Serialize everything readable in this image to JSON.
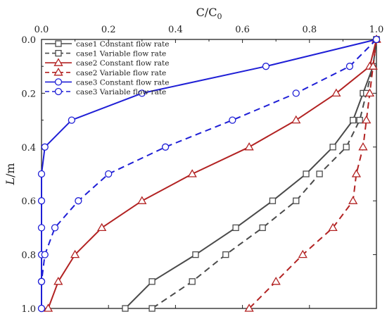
{
  "chart_data": {
    "type": "line",
    "xlabel": "C/C0",
    "ylabel": "L/m",
    "xlim": [
      0.0,
      1.0
    ],
    "ylim": [
      0.0,
      1.0
    ],
    "y_inverted": true,
    "x_axis_position": "top",
    "x_ticks": [
      0.0,
      0.2,
      0.4,
      0.6,
      0.8,
      1.0
    ],
    "x_tick_labels": [
      "0.0",
      "0.2",
      "0.4",
      "0.6",
      "0.8",
      "1.0"
    ],
    "y_ticks": [
      0.0,
      0.2,
      0.4,
      0.6,
      0.8,
      1.0
    ],
    "y_tick_labels": [
      "0.0",
      "0.2",
      "0.4",
      "0.6",
      "0.8",
      "1.0"
    ],
    "grid": false,
    "legend_position": "top-left",
    "series": [
      {
        "name": "case1 Constant flow rate",
        "color": "#4a4a4a",
        "dash": "solid",
        "marker": "square",
        "points": [
          [
            1.0,
            0.0
          ],
          [
            0.99,
            0.1
          ],
          [
            0.96,
            0.2
          ],
          [
            0.93,
            0.3
          ],
          [
            0.87,
            0.4
          ],
          [
            0.79,
            0.5
          ],
          [
            0.69,
            0.6
          ],
          [
            0.58,
            0.7
          ],
          [
            0.46,
            0.8
          ],
          [
            0.33,
            0.9
          ],
          [
            0.25,
            1.0
          ]
        ]
      },
      {
        "name": "case1 Variable flow rate",
        "color": "#4a4a4a",
        "dash": "dashed",
        "marker": "square",
        "points": [
          [
            1.0,
            0.0
          ],
          [
            0.99,
            0.1
          ],
          [
            0.97,
            0.2
          ],
          [
            0.95,
            0.3
          ],
          [
            0.91,
            0.4
          ],
          [
            0.83,
            0.5
          ],
          [
            0.76,
            0.6
          ],
          [
            0.66,
            0.7
          ],
          [
            0.55,
            0.8
          ],
          [
            0.45,
            0.9
          ],
          [
            0.33,
            1.0
          ]
        ]
      },
      {
        "name": "case2 Constant flow rate",
        "color": "#b22222",
        "dash": "solid",
        "marker": "triangle",
        "points": [
          [
            1.0,
            0.0
          ],
          [
            0.98,
            0.1
          ],
          [
            0.88,
            0.2
          ],
          [
            0.76,
            0.3
          ],
          [
            0.62,
            0.4
          ],
          [
            0.45,
            0.5
          ],
          [
            0.3,
            0.6
          ],
          [
            0.18,
            0.7
          ],
          [
            0.1,
            0.8
          ],
          [
            0.05,
            0.9
          ],
          [
            0.02,
            1.0
          ]
        ]
      },
      {
        "name": "case2 Variable flow rate",
        "color": "#b22222",
        "dash": "dashed",
        "marker": "triangle",
        "points": [
          [
            1.0,
            0.0
          ],
          [
            0.99,
            0.1
          ],
          [
            0.98,
            0.2
          ],
          [
            0.97,
            0.3
          ],
          [
            0.96,
            0.4
          ],
          [
            0.94,
            0.5
          ],
          [
            0.93,
            0.6
          ],
          [
            0.87,
            0.7
          ],
          [
            0.78,
            0.8
          ],
          [
            0.7,
            0.9
          ],
          [
            0.62,
            1.0
          ]
        ]
      },
      {
        "name": "case3 Constant flow rate",
        "color": "#1f1fd6",
        "dash": "solid",
        "marker": "circle",
        "points": [
          [
            1.0,
            0.0
          ],
          [
            0.67,
            0.1
          ],
          [
            0.3,
            0.2
          ],
          [
            0.09,
            0.3
          ],
          [
            0.01,
            0.4
          ],
          [
            0.0,
            0.5
          ],
          [
            0.0,
            0.6
          ],
          [
            0.0,
            0.7
          ],
          [
            0.0,
            0.8
          ],
          [
            0.0,
            0.9
          ],
          [
            0.0,
            1.0
          ]
        ]
      },
      {
        "name": "case3 Variable flow rate",
        "color": "#1f1fd6",
        "dash": "dashed",
        "marker": "circle",
        "points": [
          [
            1.0,
            0.0
          ],
          [
            0.92,
            0.1
          ],
          [
            0.76,
            0.2
          ],
          [
            0.57,
            0.3
          ],
          [
            0.37,
            0.4
          ],
          [
            0.2,
            0.5
          ],
          [
            0.11,
            0.6
          ],
          [
            0.04,
            0.7
          ],
          [
            0.01,
            0.8
          ],
          [
            0.0,
            0.9
          ],
          [
            0.0,
            1.0
          ]
        ]
      }
    ]
  }
}
